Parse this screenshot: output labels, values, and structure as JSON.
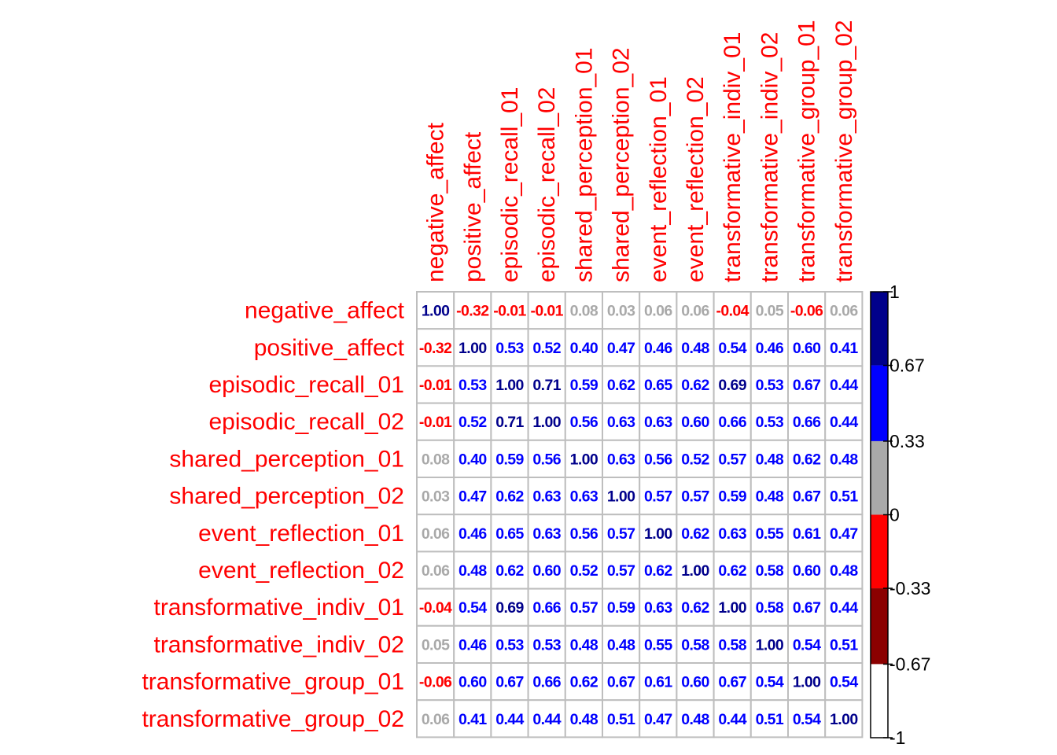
{
  "chart_data": {
    "type": "heatmap",
    "variables": [
      "negative_affect",
      "positive_affect",
      "episodic_recall_01",
      "episodic_recall_02",
      "shared_perception_01",
      "shared_perception_02",
      "event_reflection_01",
      "event_reflection_02",
      "transformative_indiv_01",
      "transformative_indiv_02",
      "transformative_group_01",
      "transformative_group_02"
    ],
    "values": [
      [
        1.0,
        -0.32,
        -0.01,
        -0.01,
        0.08,
        0.03,
        0.06,
        0.06,
        -0.04,
        0.05,
        -0.06,
        0.06
      ],
      [
        -0.32,
        1.0,
        0.53,
        0.52,
        0.4,
        0.47,
        0.46,
        0.48,
        0.54,
        0.46,
        0.6,
        0.41
      ],
      [
        -0.01,
        0.53,
        1.0,
        0.71,
        0.59,
        0.62,
        0.65,
        0.62,
        0.69,
        0.53,
        0.67,
        0.44
      ],
      [
        -0.01,
        0.52,
        0.71,
        1.0,
        0.56,
        0.63,
        0.63,
        0.6,
        0.66,
        0.53,
        0.66,
        0.44
      ],
      [
        0.08,
        0.4,
        0.59,
        0.56,
        1.0,
        0.63,
        0.56,
        0.52,
        0.57,
        0.48,
        0.62,
        0.48
      ],
      [
        0.03,
        0.47,
        0.62,
        0.63,
        0.63,
        1.0,
        0.57,
        0.57,
        0.59,
        0.48,
        0.67,
        0.51
      ],
      [
        0.06,
        0.46,
        0.65,
        0.63,
        0.56,
        0.57,
        1.0,
        0.62,
        0.63,
        0.55,
        0.61,
        0.47
      ],
      [
        0.06,
        0.48,
        0.62,
        0.6,
        0.52,
        0.57,
        0.62,
        1.0,
        0.62,
        0.58,
        0.6,
        0.48
      ],
      [
        -0.04,
        0.54,
        0.69,
        0.66,
        0.57,
        0.59,
        0.63,
        0.62,
        1.0,
        0.58,
        0.67,
        0.44
      ],
      [
        0.05,
        0.46,
        0.53,
        0.53,
        0.48,
        0.48,
        0.55,
        0.58,
        0.58,
        1.0,
        0.54,
        0.51
      ],
      [
        -0.06,
        0.6,
        0.67,
        0.66,
        0.62,
        0.67,
        0.61,
        0.6,
        0.67,
        0.54,
        1.0,
        0.54
      ],
      [
        0.06,
        0.41,
        0.44,
        0.44,
        0.48,
        0.51,
        0.47,
        0.48,
        0.44,
        0.51,
        0.54,
        1.0
      ]
    ],
    "value_labels": [
      [
        "1.00",
        "-0.32",
        "-0.01",
        "-0.01",
        "0.08",
        "0.03",
        "0.06",
        "0.06",
        "-0.04",
        "0.05",
        "-0.06",
        "0.06"
      ],
      [
        "-0.32",
        "1.00",
        "0.53",
        "0.52",
        "0.40",
        "0.47",
        "0.46",
        "0.48",
        "0.54",
        "0.46",
        "0.60",
        "0.41"
      ],
      [
        "-0.01",
        "0.53",
        "1.00",
        "0.71",
        "0.59",
        "0.62",
        "0.65",
        "0.62",
        "0.69",
        "0.53",
        "0.67",
        "0.44"
      ],
      [
        "-0.01",
        "0.52",
        "0.71",
        "1.00",
        "0.56",
        "0.63",
        "0.63",
        "0.60",
        "0.66",
        "0.53",
        "0.66",
        "0.44"
      ],
      [
        "0.08",
        "0.40",
        "0.59",
        "0.56",
        "1.00",
        "0.63",
        "0.56",
        "0.52",
        "0.57",
        "0.48",
        "0.62",
        "0.48"
      ],
      [
        "0.03",
        "0.47",
        "0.62",
        "0.63",
        "0.63",
        "1.00",
        "0.57",
        "0.57",
        "0.59",
        "0.48",
        "0.67",
        "0.51"
      ],
      [
        "0.06",
        "0.46",
        "0.65",
        "0.63",
        "0.56",
        "0.57",
        "1.00",
        "0.62",
        "0.63",
        "0.55",
        "0.61",
        "0.47"
      ],
      [
        "0.06",
        "0.48",
        "0.62",
        "0.60",
        "0.52",
        "0.57",
        "0.62",
        "1.00",
        "0.62",
        "0.58",
        "0.60",
        "0.48"
      ],
      [
        "-0.04",
        "0.54",
        "0.69",
        "0.66",
        "0.57",
        "0.59",
        "0.63",
        "0.62",
        "1.00",
        "0.58",
        "0.67",
        "0.44"
      ],
      [
        "0.05",
        "0.46",
        "0.53",
        "0.53",
        "0.48",
        "0.48",
        "0.55",
        "0.58",
        "0.58",
        "1.00",
        "0.54",
        "0.51"
      ],
      [
        "-0.06",
        "0.60",
        "0.67",
        "0.66",
        "0.62",
        "0.67",
        "0.61",
        "0.60",
        "0.67",
        "0.54",
        "1.00",
        "0.54"
      ],
      [
        "0.06",
        "0.41",
        "0.44",
        "0.44",
        "0.48",
        "0.51",
        "0.47",
        "0.48",
        "0.44",
        "0.51",
        "0.54",
        "1.00"
      ]
    ],
    "colorbar": {
      "ticks": [
        "1",
        "0.67",
        "0.33",
        "0",
        "-0.33",
        "-0.67",
        "-1"
      ],
      "bins": [
        {
          "from": 0.67,
          "to": 1,
          "color": "#00008b"
        },
        {
          "from": 0.33,
          "to": 0.67,
          "color": "#0000ff"
        },
        {
          "from": 0,
          "to": 0.33,
          "color": "#a9a9a9"
        },
        {
          "from": -0.33,
          "to": 0,
          "color": "#ff0000"
        },
        {
          "from": -0.67,
          "to": -0.33,
          "color": "#8b0000"
        },
        {
          "from": -1,
          "to": -0.67,
          "color": "#ffffff"
        }
      ]
    },
    "label_color": "#ff0000",
    "grid_color": "#bebebe",
    "grid": true,
    "legend_position": "right",
    "title": "",
    "xlabel": "",
    "ylabel": ""
  }
}
